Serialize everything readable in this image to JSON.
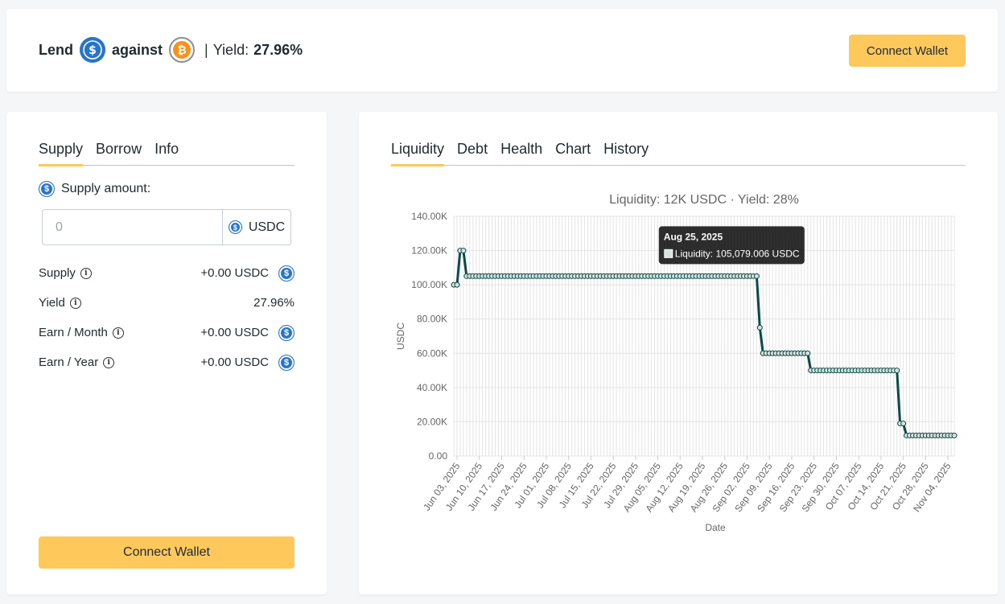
{
  "header": {
    "lend_label": "Lend",
    "against_label": "against",
    "separator": "|",
    "yield_label": "Yield:",
    "yield_value": "27.96%",
    "lend_icon": "usdc-coin-icon",
    "collateral_icon": "bitcoin-coin-icon",
    "connect_label": "Connect Wallet"
  },
  "left_panel": {
    "tabs": [
      {
        "label": "Supply",
        "active": true
      },
      {
        "label": "Borrow",
        "active": false
      },
      {
        "label": "Info",
        "active": false
      }
    ],
    "supply_amount_label": "Supply amount:",
    "input": {
      "placeholder": "0",
      "unit": "USDC"
    },
    "rows": [
      {
        "label": "Supply",
        "value": "+0.00 USDC",
        "has_coin": true
      },
      {
        "label": "Yield",
        "value": "27.96%",
        "has_coin": false
      },
      {
        "label": "Earn / Month",
        "value": "+0.00 USDC",
        "has_coin": true
      },
      {
        "label": "Earn / Year",
        "value": "+0.00 USDC",
        "has_coin": true
      }
    ],
    "connect_label": "Connect Wallet"
  },
  "right_panel": {
    "tabs": [
      {
        "label": "Liquidity",
        "active": true
      },
      {
        "label": "Debt",
        "active": false
      },
      {
        "label": "Health",
        "active": false
      },
      {
        "label": "Chart",
        "active": false
      },
      {
        "label": "History",
        "active": false
      }
    ]
  },
  "chart_data": {
    "type": "line",
    "title": "Liquidity: 12K USDC · Yield: 28%",
    "xlabel": "Date",
    "ylabel": "USDC",
    "ylim": [
      0,
      140000
    ],
    "yticks": [
      "0.00",
      "20.00K",
      "40.00K",
      "60.00K",
      "80.00K",
      "100.00K",
      "120.00K",
      "140.00K"
    ],
    "xticks": [
      "Jun 03, 2025",
      "Jun 10, 2025",
      "Jun 17, 2025",
      "Jun 24, 2025",
      "Jul 01, 2025",
      "Jul 08, 2025",
      "Jul 15, 2025",
      "Jul 22, 2025",
      "Jul 29, 2025",
      "Aug 05, 2025",
      "Aug 12, 2025",
      "Aug 19, 2025",
      "Aug 26, 2025",
      "Sep 02, 2025",
      "Sep 09, 2025",
      "Sep 16, 2025",
      "Sep 23, 2025",
      "Sep 30, 2025",
      "Oct 07, 2025",
      "Oct 14, 2025",
      "Oct 21, 2025",
      "Oct 28, 2025",
      "Nov 04, 2025"
    ],
    "grid": true,
    "line_color": "#0b4a45",
    "series": [
      {
        "values": [
          [
            "2025-06-02",
            100000
          ],
          [
            "2025-06-03",
            100000
          ],
          [
            "2025-06-04",
            120000
          ],
          [
            "2025-06-05",
            120000
          ],
          [
            "2025-06-06",
            105079
          ],
          [
            "2025-09-05",
            105079
          ],
          [
            "2025-09-06",
            75000
          ],
          [
            "2025-09-07",
            60000
          ],
          [
            "2025-09-21",
            60000
          ],
          [
            "2025-09-22",
            50000
          ],
          [
            "2025-10-19",
            50000
          ],
          [
            "2025-10-20",
            19000
          ],
          [
            "2025-10-21",
            19000
          ],
          [
            "2025-10-22",
            12000
          ],
          [
            "2025-11-06",
            12000
          ]
        ]
      }
    ],
    "tooltip": {
      "date": "Aug 25, 2025",
      "series": "Liquidity",
      "value": "105,079.006 USDC"
    }
  }
}
